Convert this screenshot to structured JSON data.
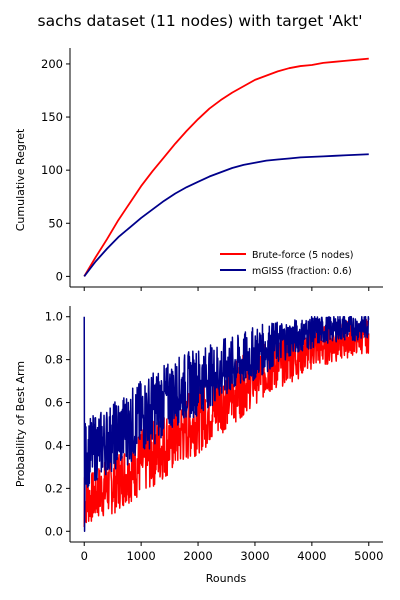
{
  "title": "sachs dataset (11 nodes) with target 'Akt'",
  "colors": {
    "brute": "#ff0000",
    "mgiss": "#00008b"
  },
  "chart_data": [
    {
      "type": "line",
      "xlabel": "",
      "ylabel": "Cumulative Regret",
      "xlim": [
        -250,
        5250
      ],
      "ylim": [
        -10,
        215
      ],
      "xticks": [
        0,
        1000,
        2000,
        3000,
        4000,
        5000
      ],
      "yticks": [
        0,
        50,
        100,
        150,
        200
      ],
      "legend": "lower-right",
      "series": [
        {
          "name": "Brute-force (5 nodes)",
          "x": [
            0,
            200,
            400,
            600,
            800,
            1000,
            1200,
            1400,
            1600,
            1800,
            2000,
            2200,
            2400,
            2600,
            2800,
            3000,
            3200,
            3400,
            3600,
            3800,
            4000,
            4200,
            4400,
            4600,
            4800,
            5000
          ],
          "values": [
            0,
            18,
            35,
            53,
            69,
            85,
            99,
            112,
            125,
            137,
            148,
            158,
            166,
            173,
            179,
            185,
            189,
            193,
            196,
            198,
            199,
            201,
            202,
            203,
            204,
            205
          ]
        },
        {
          "name": "mGISS (fraction: 0.6)",
          "x": [
            0,
            200,
            400,
            600,
            800,
            1000,
            1200,
            1400,
            1600,
            1800,
            2000,
            2200,
            2400,
            2600,
            2800,
            3000,
            3200,
            3400,
            3600,
            3800,
            4000,
            4200,
            4400,
            4600,
            4800,
            5000
          ],
          "values": [
            0,
            14,
            26,
            37,
            46,
            55,
            63,
            71,
            78,
            84,
            89,
            94,
            98,
            102,
            105,
            107,
            109,
            110,
            111,
            112,
            112.5,
            113,
            113.5,
            114,
            114.5,
            115
          ]
        }
      ]
    },
    {
      "type": "line",
      "xlabel": "Rounds",
      "ylabel": "Probability of Best Arm",
      "xlim": [
        -250,
        5250
      ],
      "ylim": [
        -0.05,
        1.05
      ],
      "xticks": [
        0,
        1000,
        2000,
        3000,
        4000,
        5000
      ],
      "yticks": [
        0.0,
        0.2,
        0.4,
        0.6,
        0.8,
        1.0
      ],
      "note_series_style": "noisy",
      "series": [
        {
          "name": "Brute-force (5 nodes)",
          "x": [
            0,
            250,
            500,
            750,
            1000,
            1250,
            1500,
            1750,
            2000,
            2250,
            2500,
            2750,
            3000,
            3250,
            3500,
            3750,
            4000,
            4250,
            4500,
            4750,
            5000
          ],
          "values": [
            0.13,
            0.18,
            0.22,
            0.27,
            0.32,
            0.37,
            0.42,
            0.47,
            0.52,
            0.57,
            0.62,
            0.67,
            0.72,
            0.76,
            0.79,
            0.82,
            0.85,
            0.87,
            0.89,
            0.9,
            0.91
          ],
          "spread": [
            0.07,
            0.08,
            0.09,
            0.09,
            0.1,
            0.1,
            0.1,
            0.1,
            0.1,
            0.1,
            0.09,
            0.09,
            0.08,
            0.08,
            0.07,
            0.07,
            0.06,
            0.06,
            0.06,
            0.05,
            0.05
          ]
        },
        {
          "name": "mGISS (fraction: 0.6)",
          "x": [
            0,
            250,
            500,
            750,
            1000,
            1250,
            1500,
            1750,
            2000,
            2250,
            2500,
            2750,
            3000,
            3250,
            3500,
            3750,
            4000,
            4250,
            4500,
            4750,
            5000
          ],
          "values": [
            0.35,
            0.4,
            0.44,
            0.48,
            0.53,
            0.58,
            0.63,
            0.67,
            0.7,
            0.73,
            0.76,
            0.79,
            0.83,
            0.86,
            0.89,
            0.91,
            0.93,
            0.94,
            0.95,
            0.95,
            0.96
          ],
          "spread": [
            0.1,
            0.1,
            0.1,
            0.11,
            0.11,
            0.11,
            0.1,
            0.1,
            0.1,
            0.09,
            0.09,
            0.08,
            0.08,
            0.07,
            0.06,
            0.05,
            0.05,
            0.04,
            0.04,
            0.04,
            0.04
          ]
        }
      ]
    }
  ]
}
